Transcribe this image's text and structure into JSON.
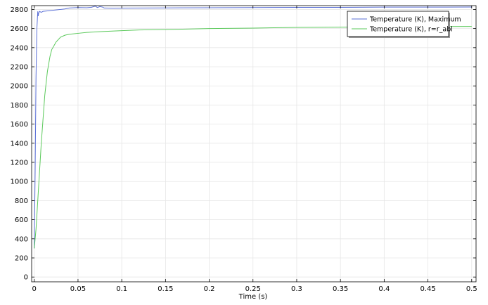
{
  "chart_data": {
    "type": "line",
    "title": "",
    "xlabel": "Time (s)",
    "ylabel": "",
    "xlim": [
      -0.003,
      0.505
    ],
    "ylim": [
      -50,
      2840
    ],
    "x_ticks": [
      0,
      0.05,
      0.1,
      0.15,
      0.2,
      0.25,
      0.3,
      0.35,
      0.4,
      0.45,
      0.5
    ],
    "x_tick_labels": [
      "0",
      "0.05",
      "0.1",
      "0.15",
      "0.2",
      "0.25",
      "0.3",
      "0.35",
      "0.4",
      "0.45",
      "0.5"
    ],
    "y_ticks": [
      0,
      200,
      400,
      600,
      800,
      1000,
      1200,
      1400,
      1600,
      1800,
      2000,
      2200,
      2400,
      2600,
      2800
    ],
    "y_tick_labels": [
      "0",
      "200",
      "400",
      "600",
      "800",
      "1000",
      "1200",
      "1400",
      "1600",
      "1800",
      "2000",
      "2200",
      "2400",
      "2600",
      "2800"
    ],
    "grid": true,
    "legend_position": "top-right",
    "series": [
      {
        "name": "Temperature (K), Maximum",
        "color": "#5a6fd6",
        "points": [
          [
            0,
            300
          ],
          [
            0.001,
            1100
          ],
          [
            0.002,
            2100
          ],
          [
            0.003,
            2600
          ],
          [
            0.004,
            2780
          ],
          [
            0.0045,
            2730
          ],
          [
            0.005,
            2760
          ],
          [
            0.006,
            2780
          ],
          [
            0.008,
            2770
          ],
          [
            0.01,
            2780
          ],
          [
            0.015,
            2785
          ],
          [
            0.02,
            2790
          ],
          [
            0.025,
            2795
          ],
          [
            0.03,
            2800
          ],
          [
            0.035,
            2805
          ],
          [
            0.04,
            2815
          ],
          [
            0.05,
            2820
          ],
          [
            0.06,
            2818
          ],
          [
            0.065,
            2822
          ],
          [
            0.07,
            2835
          ],
          [
            0.072,
            2820
          ],
          [
            0.075,
            2830
          ],
          [
            0.078,
            2825
          ],
          [
            0.08,
            2815
          ],
          [
            0.09,
            2813
          ],
          [
            0.1,
            2814
          ],
          [
            0.15,
            2816
          ],
          [
            0.2,
            2818
          ],
          [
            0.25,
            2820
          ],
          [
            0.3,
            2822
          ],
          [
            0.35,
            2822
          ],
          [
            0.4,
            2824
          ],
          [
            0.45,
            2824
          ],
          [
            0.5,
            2825
          ]
        ]
      },
      {
        "name": "Temperature (K), r=r_abl",
        "color": "#5bc95b",
        "points": [
          [
            0,
            300
          ],
          [
            0.002,
            500
          ],
          [
            0.004,
            800
          ],
          [
            0.006,
            1100
          ],
          [
            0.008,
            1400
          ],
          [
            0.01,
            1650
          ],
          [
            0.012,
            1900
          ],
          [
            0.015,
            2150
          ],
          [
            0.018,
            2310
          ],
          [
            0.02,
            2380
          ],
          [
            0.025,
            2460
          ],
          [
            0.03,
            2510
          ],
          [
            0.035,
            2530
          ],
          [
            0.04,
            2540
          ],
          [
            0.05,
            2550
          ],
          [
            0.06,
            2560
          ],
          [
            0.07,
            2565
          ],
          [
            0.08,
            2570
          ],
          [
            0.1,
            2578
          ],
          [
            0.12,
            2585
          ],
          [
            0.15,
            2590
          ],
          [
            0.2,
            2600
          ],
          [
            0.25,
            2605
          ],
          [
            0.3,
            2612
          ],
          [
            0.35,
            2615
          ],
          [
            0.4,
            2618
          ],
          [
            0.45,
            2620
          ],
          [
            0.5,
            2622
          ]
        ]
      }
    ]
  }
}
